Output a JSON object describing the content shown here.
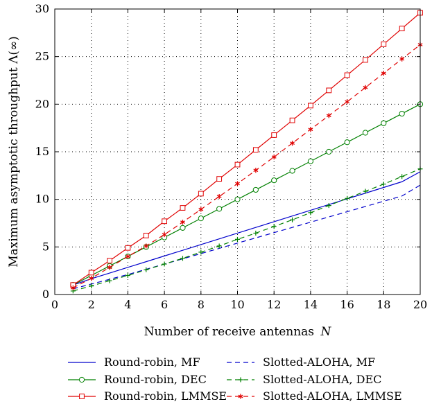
{
  "chart_data": {
    "type": "line",
    "xlabel": "Number of receive antennas",
    "xlabel_symbol": "N",
    "ylabel": "Maximum asymptotic throughput Λ(∞)",
    "xlim": [
      0,
      20
    ],
    "ylim": [
      0,
      30
    ],
    "xticks": [
      0,
      2,
      4,
      6,
      8,
      10,
      12,
      14,
      16,
      18,
      20
    ],
    "yticks": [
      0,
      5,
      10,
      15,
      20,
      25,
      30
    ],
    "grid": true,
    "legend_position": "bottom",
    "x": [
      1,
      2,
      3,
      4,
      5,
      6,
      7,
      8,
      9,
      10,
      11,
      12,
      13,
      14,
      15,
      16,
      17,
      18,
      19,
      20
    ],
    "series": [
      {
        "name": "Round-robin, MF",
        "color": "#0000cc",
        "line": "solid",
        "marker": "none",
        "values": [
          1.0,
          1.66,
          2.25,
          2.85,
          3.45,
          4.05,
          4.65,
          5.25,
          5.85,
          6.45,
          7.05,
          7.65,
          8.25,
          8.85,
          9.45,
          10.05,
          10.65,
          11.25,
          11.85,
          12.9
        ]
      },
      {
        "name": "Slotted-ALOHA, MF",
        "color": "#0000cc",
        "line": "dashed",
        "marker": "none",
        "values": [
          0.6,
          1.1,
          1.6,
          2.1,
          2.65,
          3.2,
          3.75,
          4.3,
          4.85,
          5.4,
          5.95,
          6.5,
          7.05,
          7.6,
          8.15,
          8.7,
          9.25,
          9.8,
          10.35,
          11.5
        ]
      },
      {
        "name": "Round-robin, DEC",
        "color": "#008000",
        "line": "solid",
        "marker": "circle",
        "values": [
          1.0,
          2.0,
          3.0,
          4.0,
          5.0,
          6.0,
          7.0,
          8.0,
          9.0,
          10.0,
          11.0,
          12.0,
          13.0,
          14.0,
          15.0,
          16.0,
          17.0,
          18.0,
          19.0,
          20.0
        ]
      },
      {
        "name": "Slotted-ALOHA, DEC",
        "color": "#008000",
        "line": "dashed",
        "marker": "plus",
        "values": [
          0.37,
          0.9,
          1.45,
          2.0,
          2.6,
          3.2,
          3.8,
          4.45,
          5.1,
          5.8,
          6.45,
          7.15,
          7.85,
          8.6,
          9.35,
          10.1,
          10.85,
          11.6,
          12.4,
          13.2
        ]
      },
      {
        "name": "Round-robin, LMMSE",
        "color": "#e00000",
        "line": "solid",
        "marker": "square",
        "values": [
          1.0,
          2.3,
          3.55,
          4.9,
          6.2,
          7.7,
          9.1,
          10.6,
          12.15,
          13.65,
          15.2,
          16.75,
          18.3,
          19.85,
          21.45,
          23.05,
          24.65,
          26.3,
          27.95,
          29.6
        ]
      },
      {
        "name": "Slotted-ALOHA, LMMSE",
        "color": "#e00000",
        "line": "dashed",
        "marker": "asterisk",
        "values": [
          0.7,
          1.7,
          2.85,
          4.0,
          5.1,
          6.3,
          7.6,
          8.95,
          10.3,
          11.65,
          13.05,
          14.45,
          15.9,
          17.35,
          18.8,
          20.25,
          21.75,
          23.25,
          24.75,
          26.25
        ]
      }
    ]
  }
}
